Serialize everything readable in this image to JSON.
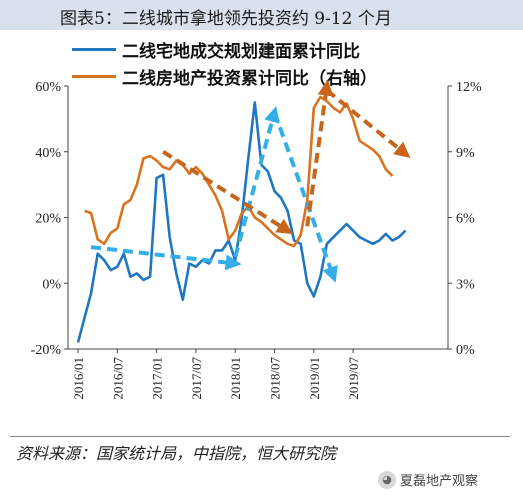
{
  "header": {
    "title": "图表5：二线城市拿地领先投资约 9-12 个月"
  },
  "legend": {
    "series1": "二线宅地成交规划建面累计同比",
    "series2": "二线房地产投资累计同比（右轴）"
  },
  "source": "资料来源：国家统计局，中指院，恒大研究院",
  "watermark": "夏磊地产观察",
  "colors": {
    "blue": "#1f77c2",
    "orange": "#d9731f",
    "arrow_blue": "#33aee6",
    "arrow_orange": "#c8651a",
    "title_bg": "#d9e1ec"
  },
  "chart_data": {
    "type": "line",
    "left_axis": {
      "ticks": [
        "-20%",
        "0%",
        "20%",
        "40%",
        "60%"
      ],
      "range": [
        -20,
        60
      ]
    },
    "right_axis": {
      "ticks": [
        "0%",
        "3%",
        "6%",
        "9%",
        "12%"
      ],
      "range": [
        0,
        12
      ]
    },
    "x_ticks": [
      "2016/01",
      "2016/07",
      "2017/01",
      "2017/07",
      "2018/01",
      "2018/07",
      "2019/01",
      "2019/07"
    ],
    "series": [
      {
        "name": "二线宅地成交规划建面累计同比",
        "axis": "left",
        "x": [
          0,
          2,
          3,
          4,
          5,
          6,
          7,
          8,
          9,
          10,
          11,
          12,
          13,
          14,
          15,
          16,
          17,
          18,
          19,
          20,
          21,
          22,
          23,
          24,
          25,
          26,
          27,
          28,
          29,
          30,
          31,
          32,
          33,
          34,
          35,
          36,
          37,
          38,
          39,
          40,
          41,
          42,
          43,
          44,
          45,
          46,
          47,
          48,
          49,
          50
        ],
        "y": [
          -18,
          -3,
          9,
          7,
          4,
          5,
          9,
          2,
          3,
          1,
          2,
          32,
          33,
          14,
          3,
          -5,
          6,
          5,
          7,
          6,
          10,
          10,
          13,
          7,
          20,
          38,
          55,
          36,
          34,
          28,
          26,
          22,
          13,
          12,
          0,
          -4,
          2,
          12,
          14,
          16,
          18,
          16,
          14,
          13,
          12,
          13,
          15,
          13,
          14,
          16
        ]
      },
      {
        "name": "二线房地产投资累计同比（右轴）",
        "axis": "right",
        "x": [
          1,
          2,
          3,
          4,
          5,
          6,
          7,
          8,
          9,
          10,
          11,
          12,
          13,
          14,
          15,
          16,
          17,
          18,
          19,
          20,
          21,
          22,
          23,
          24,
          25,
          26,
          27,
          28,
          29,
          30,
          31,
          32,
          33,
          34,
          35,
          36,
          37,
          38,
          39,
          40,
          41,
          42,
          43,
          44,
          45,
          46,
          47,
          48
        ],
        "y": [
          6.3,
          6.2,
          5.0,
          4.8,
          5.3,
          5.5,
          6.6,
          6.8,
          7.5,
          8.7,
          8.8,
          8.6,
          8.3,
          8.2,
          8.6,
          8.4,
          8.0,
          8.3,
          8.0,
          7.5,
          7.0,
          6.3,
          5.0,
          5.4,
          6.2,
          6.5,
          6.0,
          5.8,
          5.5,
          5.2,
          5.0,
          4.8,
          4.7,
          5.2,
          6.8,
          11.0,
          11.5,
          11.3,
          11.0,
          10.8,
          11.2,
          10.5,
          9.5,
          9.3,
          9.1,
          8.8,
          8.2,
          7.9
        ]
      }
    ],
    "annotations": [
      {
        "type": "dashed-arrow",
        "color": "blue",
        "from": [
          2,
          11
        ],
        "to": [
          24,
          6
        ]
      },
      {
        "type": "dashed-arrow",
        "color": "blue",
        "from": [
          24,
          8
        ],
        "to": [
          30,
          52
        ]
      },
      {
        "type": "dashed-arrow",
        "color": "blue",
        "from": [
          30,
          52
        ],
        "to": [
          39,
          2
        ]
      },
      {
        "type": "dashed-arrow",
        "color": "orange",
        "from": [
          13,
          9.0
        ],
        "to": [
          32,
          5.4
        ]
      },
      {
        "type": "dashed-arrow",
        "color": "orange",
        "from": [
          35,
          5.6
        ],
        "to": [
          38,
          12.0
        ]
      },
      {
        "type": "dashed-arrow",
        "color": "orange",
        "from": [
          38,
          11.8
        ],
        "to": [
          50,
          8.9
        ]
      }
    ]
  }
}
